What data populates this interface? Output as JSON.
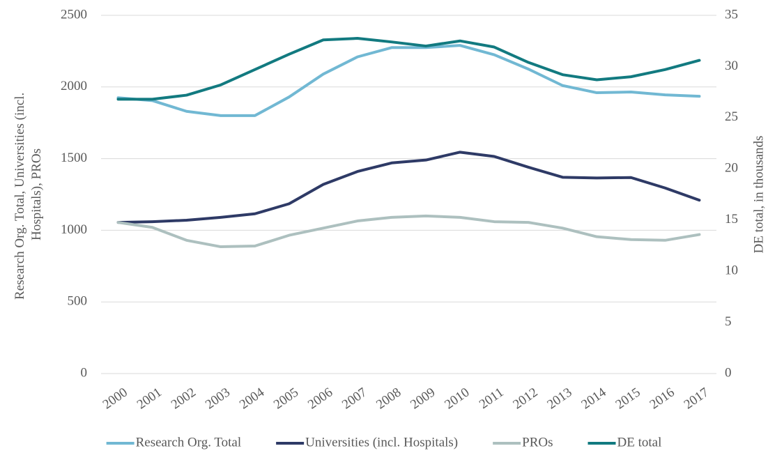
{
  "chart_data": {
    "type": "line",
    "ylabel": [
      "Research Org. Total, Universities (incl.",
      "Hospitals), PROs"
    ],
    "y2label": "DE total, in thousands",
    "categories": [
      "2000",
      "2001",
      "2002",
      "2003",
      "2004",
      "2005",
      "2006",
      "2007",
      "2008",
      "2009",
      "2010",
      "2011",
      "2012",
      "2013",
      "2014",
      "2015",
      "2016",
      "2017"
    ],
    "series": [
      {
        "name": "Research Org. Total",
        "color": "#71b8d3",
        "values": [
          1925,
          1905,
          1830,
          1800,
          1800,
          1930,
          2090,
          2210,
          2275,
          2275,
          2290,
          2225,
          2125,
          2010,
          1960,
          1965,
          1945,
          1935
        ]
      },
      {
        "name": "Universities (incl. Hospitals)",
        "color": "#2e3a66",
        "values": [
          1055,
          1060,
          1070,
          1090,
          1115,
          1185,
          1320,
          1410,
          1470,
          1490,
          1545,
          1515,
          1440,
          1370,
          1365,
          1368,
          1295,
          1210
        ]
      },
      {
        "name": "PROs",
        "color": "#adc0bf",
        "values": [
          1055,
          1020,
          930,
          885,
          890,
          965,
          1015,
          1065,
          1090,
          1100,
          1090,
          1060,
          1055,
          1015,
          955,
          935,
          930,
          970
        ]
      },
      {
        "name": "DE total",
        "color": "#127a80",
        "axis": "y2",
        "values": [
          26.8,
          26.8,
          27.2,
          28.2,
          29.7,
          31.2,
          32.6,
          32.75,
          32.4,
          32.0,
          32.5,
          31.9,
          30.4,
          29.2,
          28.7,
          29.0,
          29.7,
          30.6
        ]
      }
    ],
    "ylim": [
      0,
      2500
    ],
    "yticks": [
      0,
      500,
      1000,
      1500,
      2000,
      2500
    ],
    "y2lim": [
      0,
      35
    ],
    "y2ticks": [
      0,
      5,
      10,
      15,
      20,
      25,
      30,
      35
    ],
    "grid": true,
    "legend": "bottom"
  }
}
